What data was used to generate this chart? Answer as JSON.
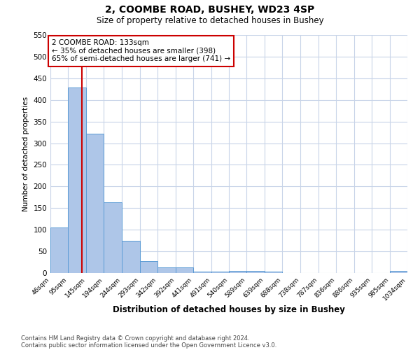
{
  "title": "2, COOMBE ROAD, BUSHEY, WD23 4SP",
  "subtitle": "Size of property relative to detached houses in Bushey",
  "xlabel": "Distribution of detached houses by size in Bushey",
  "ylabel": "Number of detached properties",
  "bar_edges": [
    46,
    95,
    145,
    194,
    244,
    293,
    342,
    392,
    441,
    491,
    540,
    589,
    639,
    688,
    738,
    787,
    836,
    886,
    935,
    985,
    1034
  ],
  "bar_heights": [
    105,
    428,
    322,
    163,
    75,
    27,
    13,
    13,
    3,
    3,
    5,
    5,
    3,
    0,
    0,
    0,
    0,
    0,
    0,
    5
  ],
  "bar_color": "#aec6e8",
  "bar_edge_color": "#5b9bd5",
  "property_line_x": 133,
  "property_line_color": "#cc0000",
  "ylim": [
    0,
    550
  ],
  "yticks": [
    0,
    50,
    100,
    150,
    200,
    250,
    300,
    350,
    400,
    450,
    500,
    550
  ],
  "annotation_title": "2 COOMBE ROAD: 133sqm",
  "annotation_line1": "← 35% of detached houses are smaller (398)",
  "annotation_line2": "65% of semi-detached houses are larger (741) →",
  "annotation_box_color": "#ffffff",
  "annotation_box_edge_color": "#cc0000",
  "footnote1": "Contains HM Land Registry data © Crown copyright and database right 2024.",
  "footnote2": "Contains public sector information licensed under the Open Government Licence v3.0.",
  "bg_color": "#ffffff",
  "grid_color": "#c8d4e8",
  "tick_labels": [
    "46sqm",
    "95sqm",
    "145sqm",
    "194sqm",
    "244sqm",
    "293sqm",
    "342sqm",
    "392sqm",
    "441sqm",
    "491sqm",
    "540sqm",
    "589sqm",
    "639sqm",
    "688sqm",
    "738sqm",
    "787sqm",
    "836sqm",
    "886sqm",
    "935sqm",
    "985sqm",
    "1034sqm"
  ]
}
